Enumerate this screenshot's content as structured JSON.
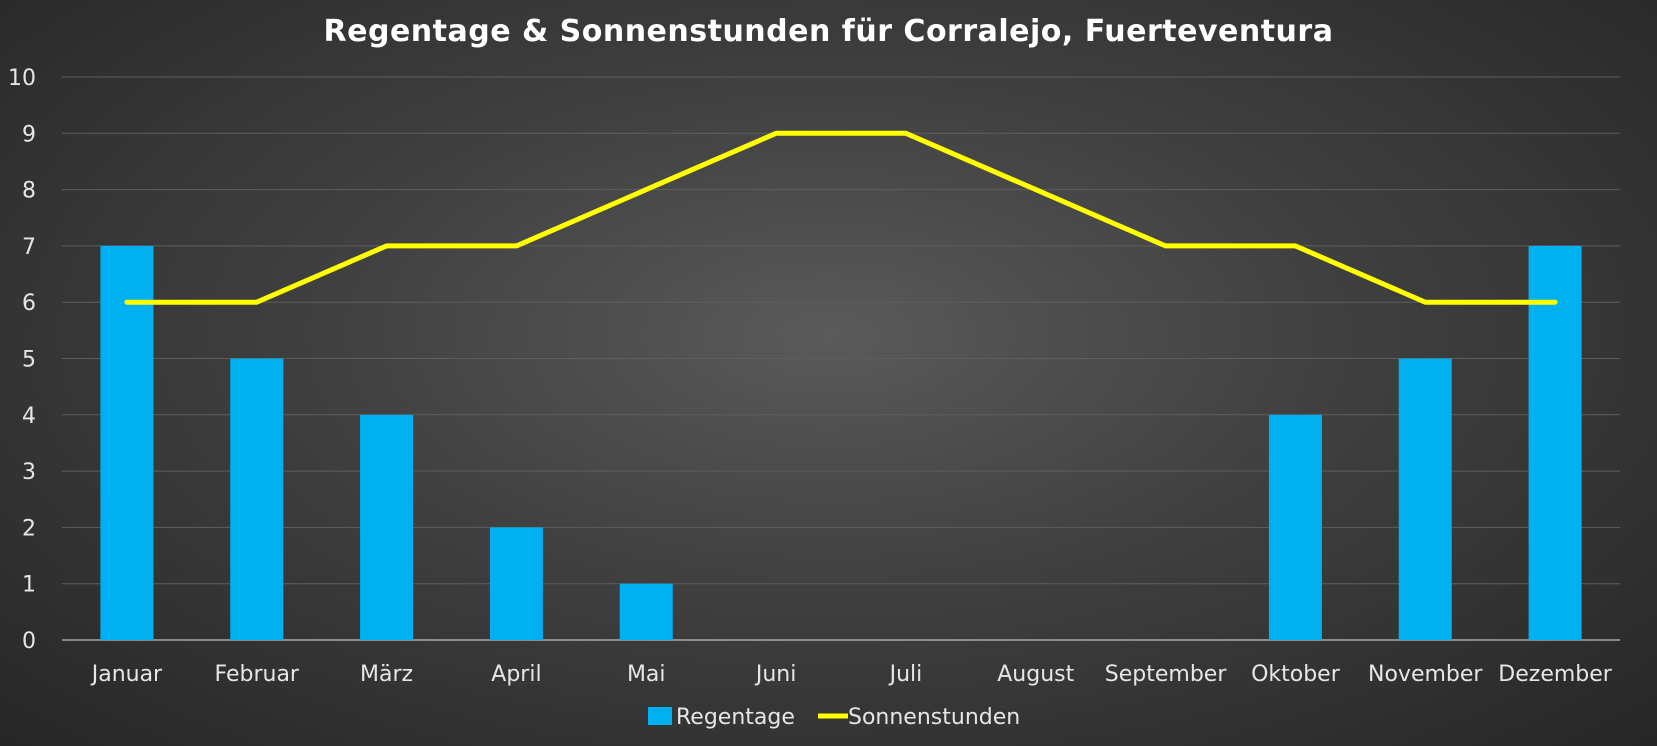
{
  "chart_data": {
    "type": "bar",
    "title": "Regentage & Sonnenstunden für Corralejo, Fuerteventura",
    "categories": [
      "Januar",
      "Februar",
      "März",
      "April",
      "Mai",
      "Juni",
      "Juli",
      "August",
      "September",
      "Oktober",
      "November",
      "Dezember"
    ],
    "series": [
      {
        "name": "Regentage",
        "type": "bar",
        "color": "#00b0f0",
        "values": [
          7,
          5,
          4,
          2,
          1,
          0,
          0,
          0,
          0,
          4,
          5,
          7
        ]
      },
      {
        "name": "Sonnenstunden",
        "type": "line",
        "color": "#ffff00",
        "values": [
          6,
          6,
          7,
          7,
          8,
          9,
          9,
          8,
          7,
          7,
          6,
          6
        ]
      }
    ],
    "ylim": [
      0,
      10
    ],
    "yticks": [
      0,
      1,
      2,
      3,
      4,
      5,
      6,
      7,
      8,
      9,
      10
    ],
    "grid": true,
    "legend": "bottom"
  }
}
